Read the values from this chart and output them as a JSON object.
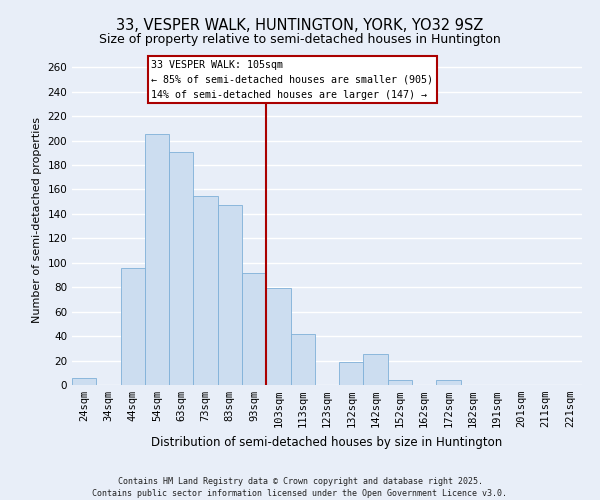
{
  "title": "33, VESPER WALK, HUNTINGTON, YORK, YO32 9SZ",
  "subtitle": "Size of property relative to semi-detached houses in Huntington",
  "xlabel": "Distribution of semi-detached houses by size in Huntington",
  "ylabel": "Number of semi-detached properties",
  "bar_labels": [
    "24sqm",
    "34sqm",
    "44sqm",
    "54sqm",
    "63sqm",
    "73sqm",
    "83sqm",
    "93sqm",
    "103sqm",
    "113sqm",
    "123sqm",
    "132sqm",
    "142sqm",
    "152sqm",
    "162sqm",
    "172sqm",
    "182sqm",
    "191sqm",
    "201sqm",
    "211sqm",
    "221sqm"
  ],
  "bar_values": [
    6,
    0,
    96,
    205,
    191,
    155,
    147,
    92,
    79,
    42,
    0,
    19,
    25,
    4,
    0,
    4,
    0,
    0,
    0,
    0,
    0
  ],
  "bar_color": "#ccddf0",
  "bar_edge_color": "#7fb0d8",
  "vline_index": 8,
  "vline_color": "#aa0000",
  "ylim": [
    0,
    270
  ],
  "yticks": [
    0,
    20,
    40,
    60,
    80,
    100,
    120,
    140,
    160,
    180,
    200,
    220,
    240,
    260
  ],
  "annotation_title": "33 VESPER WALK: 105sqm",
  "annotation_line1": "← 85% of semi-detached houses are smaller (905)",
  "annotation_line2": "14% of semi-detached houses are larger (147) →",
  "annotation_box_facecolor": "#ffffff",
  "annotation_box_edgecolor": "#aa0000",
  "footer1": "Contains HM Land Registry data © Crown copyright and database right 2025.",
  "footer2": "Contains public sector information licensed under the Open Government Licence v3.0.",
  "bg_color": "#e8eef8",
  "grid_color": "#ffffff",
  "title_fontsize": 10.5,
  "subtitle_fontsize": 9,
  "ylabel_fontsize": 8,
  "xlabel_fontsize": 8.5,
  "tick_fontsize": 7.5,
  "footer_fontsize": 6
}
